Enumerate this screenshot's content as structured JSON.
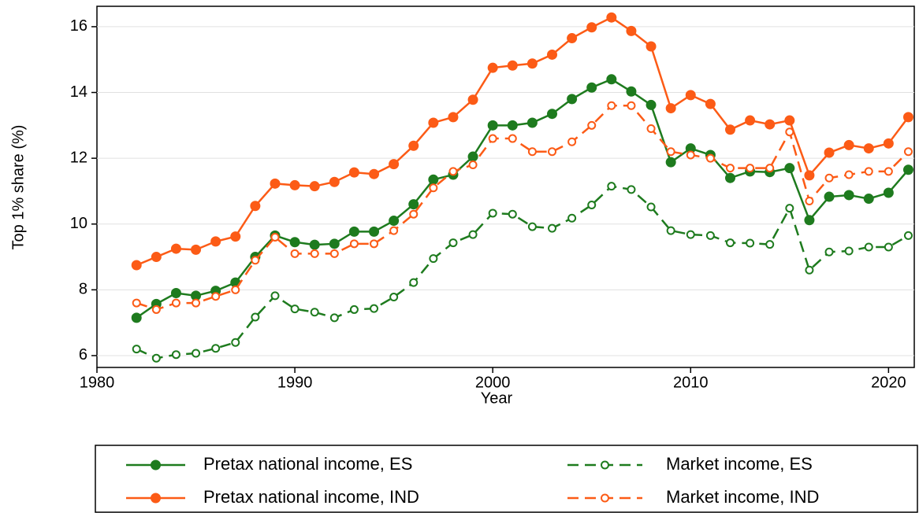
{
  "chart_data": {
    "type": "line",
    "x_label": "Year",
    "y_label": "Top 1% share (%)",
    "x": [
      1982,
      1983,
      1984,
      1985,
      1986,
      1987,
      1988,
      1989,
      1990,
      1991,
      1992,
      1993,
      1994,
      1995,
      1996,
      1997,
      1998,
      1999,
      2000,
      2001,
      2002,
      2003,
      2004,
      2005,
      2006,
      2007,
      2008,
      2009,
      2010,
      2011,
      2012,
      2013,
      2014,
      2015,
      2016,
      2017,
      2018,
      2019,
      2020,
      2021
    ],
    "series": [
      {
        "name": "Pretax national income, ES",
        "color": "#1e7b1e",
        "dashed": false,
        "marker": "filled",
        "values": [
          7.15,
          7.57,
          7.9,
          7.82,
          7.97,
          8.22,
          9.0,
          9.65,
          9.45,
          9.37,
          9.4,
          9.77,
          9.77,
          10.1,
          10.6,
          11.35,
          11.5,
          12.05,
          13.0,
          13.0,
          13.08,
          13.35,
          13.8,
          14.15,
          14.4,
          14.03,
          13.62,
          11.88,
          12.3,
          12.1,
          11.4,
          11.6,
          11.58,
          11.7,
          10.12,
          10.83,
          10.88,
          10.77,
          10.95,
          11.65
        ]
      },
      {
        "name": "Pretax national income, IND",
        "color": "#fc5b16",
        "dashed": false,
        "marker": "filled",
        "values": [
          8.75,
          9.0,
          9.25,
          9.22,
          9.47,
          9.62,
          10.55,
          11.23,
          11.18,
          11.15,
          11.28,
          11.57,
          11.52,
          11.82,
          12.38,
          13.08,
          13.25,
          13.78,
          14.75,
          14.82,
          14.88,
          15.15,
          15.65,
          15.98,
          16.28,
          15.87,
          15.4,
          13.52,
          13.92,
          13.65,
          12.87,
          13.15,
          13.03,
          13.15,
          11.48,
          12.17,
          12.4,
          12.3,
          12.45,
          13.25
        ]
      },
      {
        "name": "Market income, ES",
        "color": "#1e7b1e",
        "dashed": true,
        "marker": "hollow",
        "values": [
          6.2,
          5.92,
          6.03,
          6.07,
          6.22,
          6.4,
          7.17,
          7.82,
          7.42,
          7.32,
          7.15,
          7.4,
          7.43,
          7.78,
          8.22,
          8.95,
          9.43,
          9.68,
          10.33,
          10.3,
          9.92,
          9.87,
          10.18,
          10.58,
          11.15,
          11.05,
          10.52,
          9.8,
          9.68,
          9.65,
          9.43,
          9.42,
          9.38,
          10.48,
          8.6,
          9.15,
          9.18,
          9.3,
          9.3,
          9.65
        ]
      },
      {
        "name": "Market income, IND",
        "color": "#fc5b16",
        "dashed": true,
        "marker": "hollow",
        "values": [
          7.6,
          7.4,
          7.6,
          7.6,
          7.8,
          8.0,
          8.9,
          9.6,
          9.1,
          9.1,
          9.1,
          9.4,
          9.4,
          9.8,
          10.3,
          11.1,
          11.6,
          11.8,
          12.6,
          12.6,
          12.2,
          12.2,
          12.5,
          13.0,
          13.6,
          13.6,
          12.9,
          12.2,
          12.1,
          12.0,
          11.7,
          11.7,
          11.7,
          12.8,
          10.7,
          11.4,
          11.5,
          11.6,
          11.6,
          12.2
        ]
      }
    ],
    "xlim": [
      1980,
      2021.3
    ],
    "xticks": [
      1980,
      1990,
      2000,
      2010,
      2020
    ],
    "ylim": [
      5.64,
      16.62
    ],
    "yticks": [
      6,
      8,
      10,
      12,
      14,
      16
    ],
    "grid": true,
    "legend": "bottom"
  }
}
